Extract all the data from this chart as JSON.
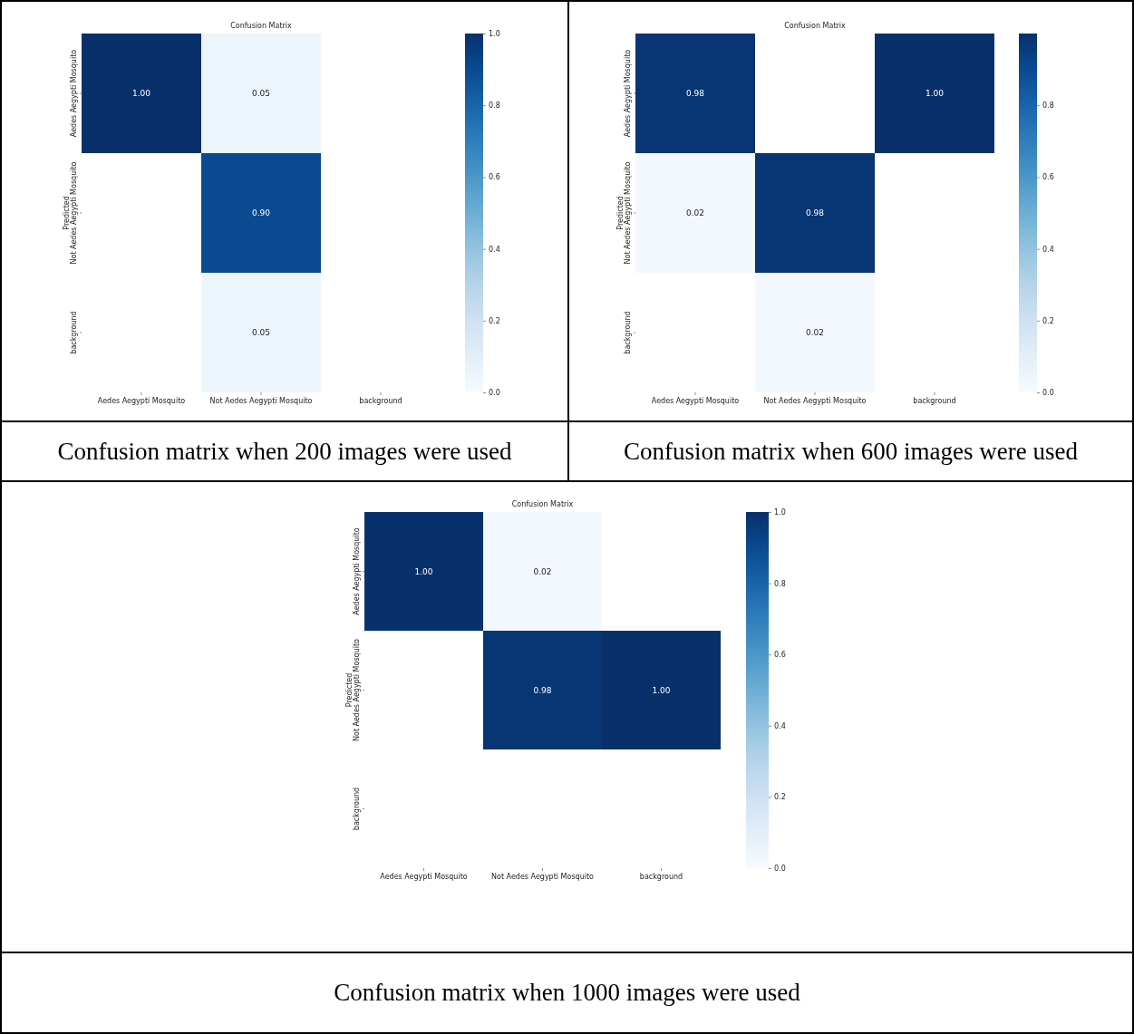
{
  "chart_data": [
    {
      "type": "heatmap",
      "title": "Confusion Matrix",
      "ylabel": "Predicted",
      "categories": [
        "Aedes Aegypti Mosquito",
        "Not Aedes Aegypti Mosquito",
        "background"
      ],
      "y_categories": [
        "Aedes Aegypti Mosquito",
        "Not Aedes Aegypti Mosquito",
        "background"
      ],
      "cells": [
        [
          1.0,
          0.05,
          null
        ],
        [
          null,
          0.9,
          null
        ],
        [
          null,
          0.05,
          null
        ]
      ],
      "cell_labels": [
        [
          "1.00",
          "0.05",
          null
        ],
        [
          null,
          "0.90",
          null
        ],
        [
          null,
          "0.05",
          null
        ]
      ],
      "clim": [
        0,
        1
      ],
      "cticks": [
        {
          "value": 0,
          "label": "0.0"
        },
        {
          "value": 0.2,
          "label": "0.2"
        },
        {
          "value": 0.4,
          "label": "0.4"
        },
        {
          "value": 0.6,
          "label": "0.6"
        },
        {
          "value": 0.8,
          "label": "0.8"
        },
        {
          "value": 1,
          "label": "1.0"
        }
      ],
      "annotations": [
        "Confusion matrix when 200 images were used"
      ]
    },
    {
      "type": "heatmap",
      "title": "Confusion Matrix",
      "ylabel": "Predicted",
      "categories": [
        "Aedes Aegypti Mosquito",
        "Not Aedes Aegypti Mosquito",
        "background"
      ],
      "y_categories": [
        "Aedes Aegypti Mosquito",
        "Not Aedes Aegypti Mosquito",
        "background"
      ],
      "cells": [
        [
          0.98,
          null,
          1.0
        ],
        [
          0.02,
          0.98,
          null
        ],
        [
          null,
          0.02,
          null
        ]
      ],
      "cell_labels": [
        [
          "0.98",
          null,
          "1.00"
        ],
        [
          "0.02",
          "0.98",
          null
        ],
        [
          null,
          "0.02",
          null
        ]
      ],
      "clim": [
        0,
        1
      ],
      "cticks": [
        {
          "value": 0,
          "label": "0.0"
        },
        {
          "value": 0.2,
          "label": "0.2"
        },
        {
          "value": 0.4,
          "label": "0.4"
        },
        {
          "value": 0.6,
          "label": "0.6"
        },
        {
          "value": 0.8,
          "label": "0.8"
        }
      ],
      "annotations": [
        "Confusion matrix when 600 images were used"
      ]
    },
    {
      "type": "heatmap",
      "title": "Confusion Matrix",
      "ylabel": "Predicted",
      "categories": [
        "Aedes Aegypti Mosquito",
        "Not Aedes Aegypti Mosquito",
        "background"
      ],
      "y_categories": [
        "Aedes Aegypti Mosquito",
        "Not Aedes Aegypti Mosquito",
        "background"
      ],
      "cells": [
        [
          1.0,
          0.02,
          null
        ],
        [
          null,
          0.98,
          1.0
        ],
        [
          null,
          null,
          null
        ]
      ],
      "cell_labels": [
        [
          "1.00",
          "0.02",
          null
        ],
        [
          null,
          "0.98",
          "1.00"
        ],
        [
          null,
          null,
          null
        ]
      ],
      "clim": [
        0,
        1
      ],
      "cticks": [
        {
          "value": 0,
          "label": "0.0"
        },
        {
          "value": 0.2,
          "label": "0.2"
        },
        {
          "value": 0.4,
          "label": "0.4"
        },
        {
          "value": 0.6,
          "label": "0.6"
        },
        {
          "value": 0.8,
          "label": "0.8"
        },
        {
          "value": 1,
          "label": "1.0"
        }
      ],
      "annotations": [
        "Confusion matrix when 1000 images were used"
      ]
    }
  ]
}
